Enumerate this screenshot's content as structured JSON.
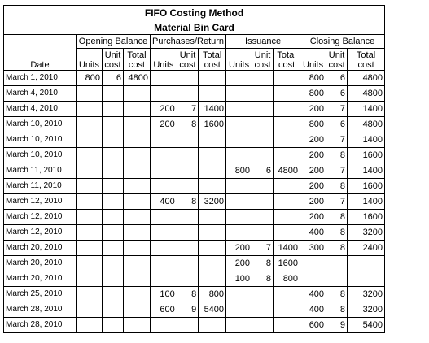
{
  "title": "FIFO Costing Method",
  "subtitle": "Material Bin Card",
  "groups": {
    "opening": "Opening Balance",
    "purchases": "Purchases/Return",
    "issuance": "Issuance",
    "closing": "Closing Balance"
  },
  "columns": {
    "date": "Date",
    "units": "Units",
    "unit_cost": [
      "Unit",
      "cost"
    ],
    "total_cost": [
      "Total",
      "cost"
    ]
  },
  "rows": [
    {
      "date": "March 1, 2010",
      "opening": [
        "800",
        "6",
        "4800"
      ],
      "purchases": [
        "",
        "",
        ""
      ],
      "issuance": [
        "",
        "",
        ""
      ],
      "closing": [
        "800",
        "6",
        "4800"
      ]
    },
    {
      "date": "March 4, 2010",
      "opening": [
        "",
        "",
        ""
      ],
      "purchases": [
        "",
        "",
        ""
      ],
      "issuance": [
        "",
        "",
        ""
      ],
      "closing": [
        "800",
        "6",
        "4800"
      ]
    },
    {
      "date": "March 4, 2010",
      "opening": [
        "",
        "",
        ""
      ],
      "purchases": [
        "200",
        "7",
        "1400"
      ],
      "issuance": [
        "",
        "",
        ""
      ],
      "closing": [
        "200",
        "7",
        "1400"
      ]
    },
    {
      "date": "March 10, 2010",
      "opening": [
        "",
        "",
        ""
      ],
      "purchases": [
        "200",
        "8",
        "1600"
      ],
      "issuance": [
        "",
        "",
        ""
      ],
      "closing": [
        "800",
        "6",
        "4800"
      ]
    },
    {
      "date": "March 10, 2010",
      "opening": [
        "",
        "",
        ""
      ],
      "purchases": [
        "",
        "",
        ""
      ],
      "issuance": [
        "",
        "",
        ""
      ],
      "closing": [
        "200",
        "7",
        "1400"
      ]
    },
    {
      "date": "March 10, 2010",
      "opening": [
        "",
        "",
        ""
      ],
      "purchases": [
        "",
        "",
        ""
      ],
      "issuance": [
        "",
        "",
        ""
      ],
      "closing": [
        "200",
        "8",
        "1600"
      ]
    },
    {
      "date": "March 11, 2010",
      "opening": [
        "",
        "",
        ""
      ],
      "purchases": [
        "",
        "",
        ""
      ],
      "issuance": [
        "800",
        "6",
        "4800"
      ],
      "closing": [
        "200",
        "7",
        "1400"
      ]
    },
    {
      "date": "March 11, 2010",
      "opening": [
        "",
        "",
        ""
      ],
      "purchases": [
        "",
        "",
        ""
      ],
      "issuance": [
        "",
        "",
        ""
      ],
      "closing": [
        "200",
        "8",
        "1600"
      ]
    },
    {
      "date": "March 12, 2010",
      "opening": [
        "",
        "",
        ""
      ],
      "purchases": [
        "400",
        "8",
        "3200"
      ],
      "issuance": [
        "",
        "",
        ""
      ],
      "closing": [
        "200",
        "7",
        "1400"
      ]
    },
    {
      "date": "March 12, 2010",
      "opening": [
        "",
        "",
        ""
      ],
      "purchases": [
        "",
        "",
        ""
      ],
      "issuance": [
        "",
        "",
        ""
      ],
      "closing": [
        "200",
        "8",
        "1600"
      ]
    },
    {
      "date": "March 12, 2010",
      "opening": [
        "",
        "",
        ""
      ],
      "purchases": [
        "",
        "",
        ""
      ],
      "issuance": [
        "",
        "",
        ""
      ],
      "closing": [
        "400",
        "8",
        "3200"
      ]
    },
    {
      "date": "March 20, 2010",
      "opening": [
        "",
        "",
        ""
      ],
      "purchases": [
        "",
        "",
        ""
      ],
      "issuance": [
        "200",
        "7",
        "1400"
      ],
      "closing": [
        "300",
        "8",
        "2400"
      ]
    },
    {
      "date": "March 20, 2010",
      "opening": [
        "",
        "",
        ""
      ],
      "purchases": [
        "",
        "",
        ""
      ],
      "issuance": [
        "200",
        "8",
        "1600"
      ],
      "closing": [
        "",
        "",
        ""
      ]
    },
    {
      "date": "March 20, 2010",
      "opening": [
        "",
        "",
        ""
      ],
      "purchases": [
        "",
        "",
        ""
      ],
      "issuance": [
        "100",
        "8",
        "800"
      ],
      "closing": [
        "",
        "",
        ""
      ]
    },
    {
      "date": "March 25, 2010",
      "opening": [
        "",
        "",
        ""
      ],
      "purchases": [
        "100",
        "8",
        "800"
      ],
      "issuance": [
        "",
        "",
        ""
      ],
      "closing": [
        "400",
        "8",
        "3200"
      ]
    },
    {
      "date": "March 28, 2010",
      "opening": [
        "",
        "",
        ""
      ],
      "purchases": [
        "600",
        "9",
        "5400"
      ],
      "issuance": [
        "",
        "",
        ""
      ],
      "closing": [
        "400",
        "8",
        "3200"
      ]
    },
    {
      "date": "March 28, 2010",
      "opening": [
        "",
        "",
        ""
      ],
      "purchases": [
        "",
        "",
        ""
      ],
      "issuance": [
        "",
        "",
        ""
      ],
      "closing": [
        "600",
        "9",
        "5400"
      ]
    }
  ]
}
